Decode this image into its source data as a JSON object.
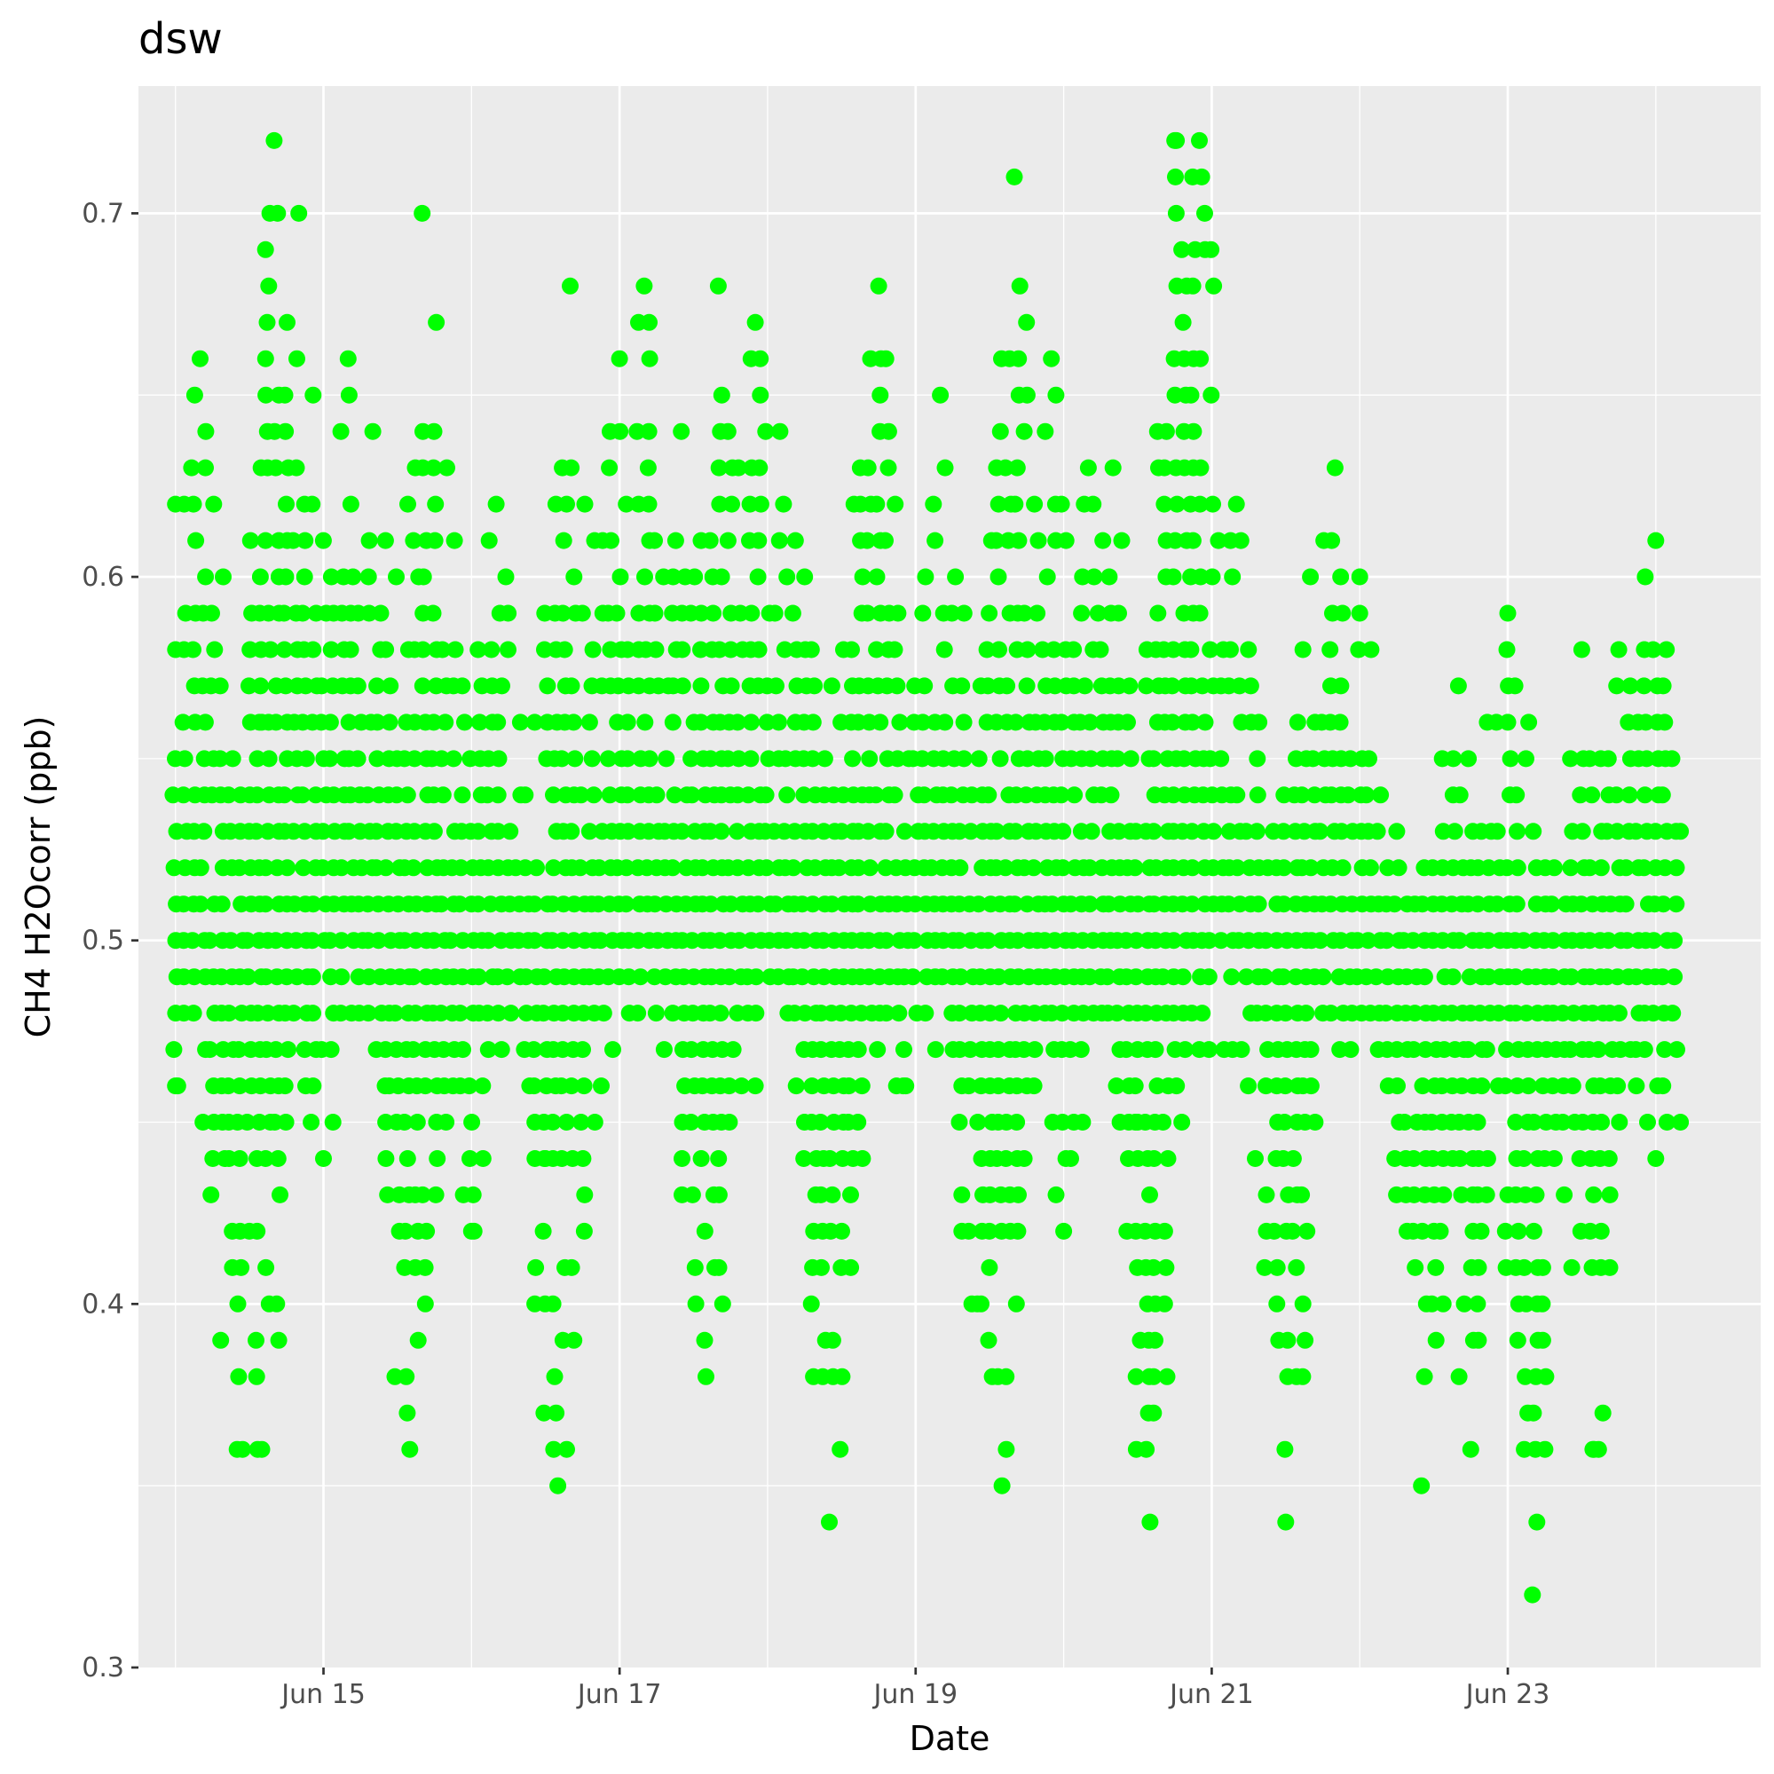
{
  "chart_data": {
    "type": "scatter",
    "title": "dsw",
    "xlabel": "Date",
    "ylabel": "CH4 H2Ocorr (ppb)",
    "xlim": [
      "2023-06-13T18:00",
      "2023-06-24T17:00"
    ],
    "ylim": [
      0.3,
      0.735
    ],
    "x_ticks": [
      {
        "date": "2023-06-15",
        "label": "Jun 15"
      },
      {
        "date": "2023-06-17",
        "label": "Jun 17"
      },
      {
        "date": "2023-06-19",
        "label": "Jun 19"
      },
      {
        "date": "2023-06-21",
        "label": "Jun 21"
      },
      {
        "date": "2023-06-23",
        "label": "Jun 23"
      }
    ],
    "y_ticks": [
      {
        "value": 0.3,
        "label": "0.3"
      },
      {
        "value": 0.4,
        "label": "0.4"
      },
      {
        "value": 0.5,
        "label": "0.5"
      },
      {
        "value": 0.6,
        "label": "0.6"
      },
      {
        "value": 0.7,
        "label": "0.7"
      }
    ],
    "grid": true,
    "legend": "none",
    "point_color": "#00FF00",
    "panel_background": "#EBEBEB",
    "measurement_resolution": 0.01,
    "approximate_points": [
      {
        "x": "2023-06-14T00:00",
        "y": 0.46
      },
      {
        "x": "2023-06-14T00:00",
        "y": 0.62
      },
      {
        "x": "2023-06-14T04:00",
        "y": 0.66
      },
      {
        "x": "2023-06-14T08:00",
        "y": 0.44
      },
      {
        "x": "2023-06-14T10:00",
        "y": 0.36
      },
      {
        "x": "2023-06-14T14:00",
        "y": 0.56
      },
      {
        "x": "2023-06-14T14:00",
        "y": 0.36
      },
      {
        "x": "2023-06-14T16:00",
        "y": 0.72
      },
      {
        "x": "2023-06-14T20:00",
        "y": 0.7
      },
      {
        "x": "2023-06-14T22:00",
        "y": 0.45
      },
      {
        "x": "2023-06-15T00:00",
        "y": 0.44
      },
      {
        "x": "2023-06-15T04:00",
        "y": 0.66
      },
      {
        "x": "2023-06-15T08:00",
        "y": 0.64
      },
      {
        "x": "2023-06-15T10:00",
        "y": 0.46
      },
      {
        "x": "2023-06-15T14:00",
        "y": 0.36
      },
      {
        "x": "2023-06-15T16:00",
        "y": 0.7
      },
      {
        "x": "2023-06-15T20:00",
        "y": 0.63
      },
      {
        "x": "2023-06-16T00:00",
        "y": 0.42
      },
      {
        "x": "2023-06-16T04:00",
        "y": 0.62
      },
      {
        "x": "2023-06-16T08:00",
        "y": 0.54
      },
      {
        "x": "2023-06-16T12:00",
        "y": 0.44
      },
      {
        "x": "2023-06-16T14:00",
        "y": 0.35
      },
      {
        "x": "2023-06-16T16:00",
        "y": 0.68
      },
      {
        "x": "2023-06-16T20:00",
        "y": 0.45
      },
      {
        "x": "2023-06-17T00:00",
        "y": 0.66
      },
      {
        "x": "2023-06-17T04:00",
        "y": 0.68
      },
      {
        "x": "2023-06-17T10:00",
        "y": 0.64
      },
      {
        "x": "2023-06-17T14:00",
        "y": 0.38
      },
      {
        "x": "2023-06-17T16:00",
        "y": 0.68
      },
      {
        "x": "2023-06-17T22:00",
        "y": 0.67
      },
      {
        "x": "2023-06-17T22:00",
        "y": 0.46
      },
      {
        "x": "2023-06-18T02:00",
        "y": 0.64
      },
      {
        "x": "2023-06-18T06:00",
        "y": 0.6
      },
      {
        "x": "2023-06-18T10:00",
        "y": 0.34
      },
      {
        "x": "2023-06-18T14:00",
        "y": 0.62
      },
      {
        "x": "2023-06-18T18:00",
        "y": 0.68
      },
      {
        "x": "2023-06-18T22:00",
        "y": 0.46
      },
      {
        "x": "2023-06-19T04:00",
        "y": 0.65
      },
      {
        "x": "2023-06-19T10:00",
        "y": 0.4
      },
      {
        "x": "2023-06-19T14:00",
        "y": 0.35
      },
      {
        "x": "2023-06-19T16:00",
        "y": 0.71
      },
      {
        "x": "2023-06-19T22:00",
        "y": 0.66
      },
      {
        "x": "2023-06-20T00:00",
        "y": 0.42
      },
      {
        "x": "2023-06-20T04:00",
        "y": 0.63
      },
      {
        "x": "2023-06-20T08:00",
        "y": 0.63
      },
      {
        "x": "2023-06-20T12:00",
        "y": 0.45
      },
      {
        "x": "2023-06-20T14:00",
        "y": 0.34
      },
      {
        "x": "2023-06-20T18:00",
        "y": 0.72
      },
      {
        "x": "2023-06-20T22:00",
        "y": 0.72
      },
      {
        "x": "2023-06-20T22:00",
        "y": 0.47
      },
      {
        "x": "2023-06-21T02:00",
        "y": 0.47
      },
      {
        "x": "2023-06-21T04:00",
        "y": 0.62
      },
      {
        "x": "2023-06-21T10:00",
        "y": 0.53
      },
      {
        "x": "2023-06-21T12:00",
        "y": 0.34
      },
      {
        "x": "2023-06-21T16:00",
        "y": 0.6
      },
      {
        "x": "2023-06-21T20:00",
        "y": 0.63
      },
      {
        "x": "2023-06-22T00:00",
        "y": 0.6
      },
      {
        "x": "2023-06-22T06:00",
        "y": 0.53
      },
      {
        "x": "2023-06-22T10:00",
        "y": 0.35
      },
      {
        "x": "2023-06-22T16:00",
        "y": 0.57
      },
      {
        "x": "2023-06-22T18:00",
        "y": 0.36
      },
      {
        "x": "2023-06-23T00:00",
        "y": 0.59
      },
      {
        "x": "2023-06-23T04:00",
        "y": 0.32
      },
      {
        "x": "2023-06-23T12:00",
        "y": 0.58
      },
      {
        "x": "2023-06-23T14:00",
        "y": 0.36
      },
      {
        "x": "2023-06-23T18:00",
        "y": 0.58
      },
      {
        "x": "2023-06-24T00:00",
        "y": 0.61
      },
      {
        "x": "2023-06-24T00:00",
        "y": 0.44
      },
      {
        "x": "2023-06-24T04:00",
        "y": 0.45
      },
      {
        "x": "2023-06-24T04:00",
        "y": 0.53
      }
    ]
  }
}
